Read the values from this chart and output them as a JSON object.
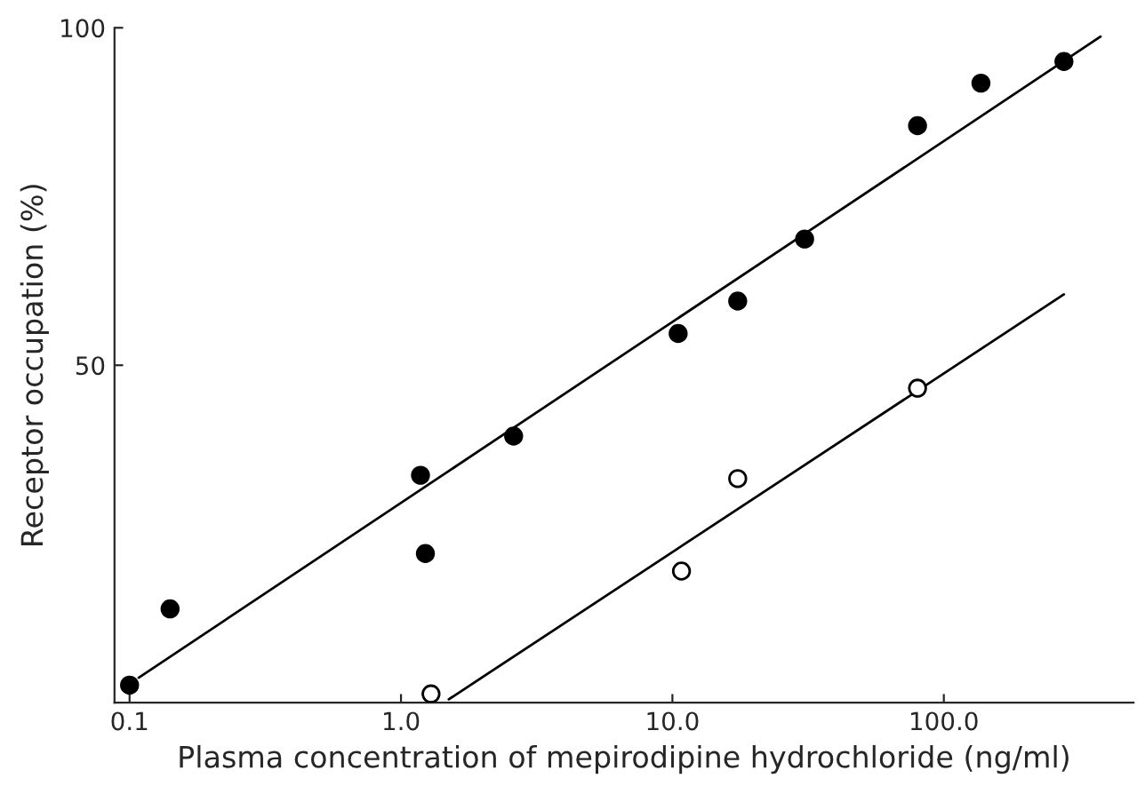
{
  "chart_data": {
    "type": "scatter",
    "xlabel": "Plasma concentration of mepirodipine hydrochloride (ng/ml)",
    "ylabel": "Receptor occupation (%)",
    "log": "x",
    "xlim": [
      0.088,
      500
    ],
    "ylim": [
      0,
      100
    ],
    "xticks": [
      {
        "value": 0.1,
        "label": "0.1"
      },
      {
        "value": 1,
        "label": "1.0"
      },
      {
        "value": 10,
        "label": "10.0"
      },
      {
        "value": 100,
        "label": "100.0"
      }
    ],
    "yticks": [
      50,
      100
    ],
    "grid": false,
    "legend": false,
    "marker": "circle",
    "series": [
      {
        "color": "#000000",
        "x": [
          0.1,
          0.141,
          1.18,
          1.23,
          2.6,
          10.5,
          17.4,
          30.7,
          80,
          137,
          277
        ],
        "values": [
          2.6,
          13.9,
          33.7,
          22.1,
          39.5,
          54.7,
          59.5,
          68.7,
          85.5,
          91.8,
          95
        ]
      },
      {
        "color": "#ffffff",
        "x": [
          1.29,
          10.8,
          17.4,
          80
        ],
        "values": [
          1.3,
          19.5,
          33.2,
          46.6
        ]
      },
      {
        "type": "line",
        "color": "#000000",
        "marker": "none",
        "x": [
          0.108,
          378
        ],
        "values": [
          3.7,
          98.7
        ]
      },
      {
        "type": "line",
        "color": "#000000",
        "marker": "none",
        "x": [
          1.5,
          277
        ],
        "values": [
          0.5,
          60.5
        ]
      }
    ]
  }
}
